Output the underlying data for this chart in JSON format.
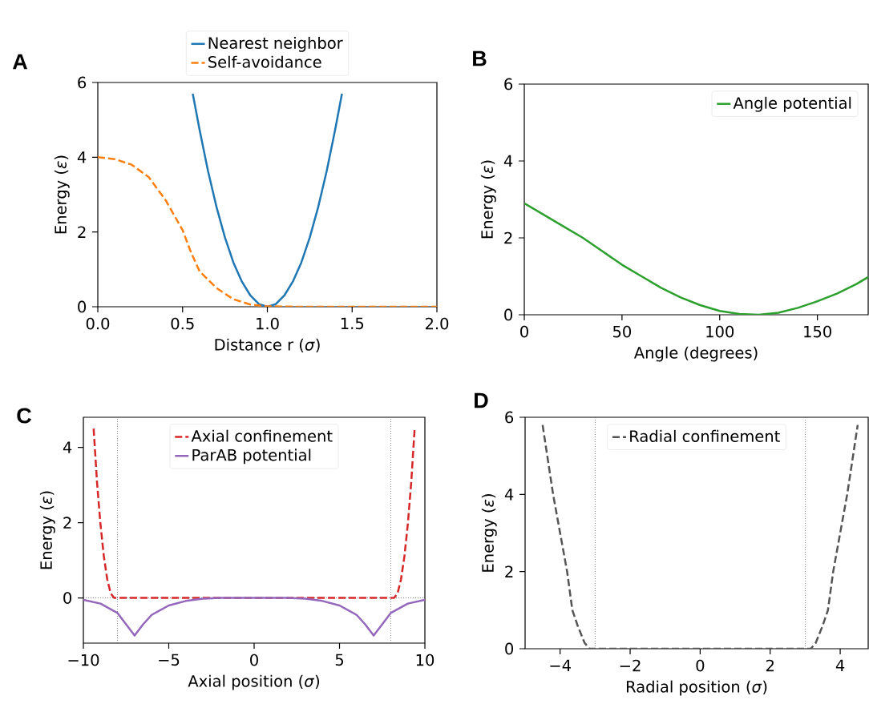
{
  "chart_data": [
    {
      "type": "line",
      "xlabel": "Distance r (*σ*)",
      "ylabel": "Energy (*ε*)",
      "annotations": [
        "A"
      ],
      "xlim": [
        0,
        2
      ],
      "ylim": [
        0,
        6
      ],
      "xticks": [
        {
          "value": 0,
          "label": "0.0"
        },
        {
          "value": 0.5,
          "label": "0.5"
        },
        {
          "value": 1,
          "label": "1.0"
        },
        {
          "value": 1.5,
          "label": "1.5"
        },
        {
          "value": 2,
          "label": "2.0"
        }
      ],
      "yticks": [
        0,
        2,
        4,
        6
      ],
      "legend": "top",
      "marker": "none",
      "series": [
        {
          "name": "Nearest neighbor",
          "color": "#1f77b4",
          "line_style": "solid",
          "x": [
            0.56,
            0.6,
            0.65,
            0.7,
            0.75,
            0.8,
            0.85,
            0.9,
            0.95,
            1.0,
            1.05,
            1.1,
            1.15,
            1.2,
            1.25,
            1.3,
            1.35,
            1.4,
            1.44
          ],
          "values": [
            5.7,
            4.74,
            3.63,
            2.67,
            1.85,
            1.18,
            0.67,
            0.3,
            0.07,
            0,
            0.07,
            0.3,
            0.67,
            1.18,
            1.85,
            2.67,
            3.63,
            4.74,
            5.7
          ]
        },
        {
          "name": "Self-avoidance",
          "color": "#ff7f0e",
          "line_style": "dashed",
          "x": [
            0,
            0.1,
            0.2,
            0.3,
            0.4,
            0.45,
            0.5,
            0.55,
            0.6,
            0.7,
            0.8,
            0.9,
            1.0,
            1.2,
            2.0
          ],
          "values": [
            4,
            3.95,
            3.8,
            3.47,
            2.85,
            2.45,
            2.05,
            1.45,
            0.95,
            0.5,
            0.2,
            0.06,
            0.01,
            0,
            0
          ]
        }
      ]
    },
    {
      "type": "line",
      "xlabel": "Angle (degrees)",
      "ylabel": "Energy (*ε*)",
      "annotations": [
        "B"
      ],
      "xlim": [
        0,
        176
      ],
      "ylim": [
        0,
        6
      ],
      "xticks": [
        0,
        50,
        100,
        150
      ],
      "yticks": [
        0,
        2,
        4,
        6
      ],
      "legend": "top right",
      "marker": "none",
      "series": [
        {
          "name": "Angle potential",
          "color": "#2ca02c",
          "line_style": "solid",
          "x": [
            0,
            10,
            20,
            30,
            40,
            50,
            60,
            70,
            80,
            90,
            100,
            110,
            120,
            130,
            140,
            150,
            160,
            170,
            176
          ],
          "values": [
            2.9,
            2.6,
            2.3,
            2.0,
            1.65,
            1.3,
            1.0,
            0.7,
            0.45,
            0.25,
            0.1,
            0.02,
            0,
            0.05,
            0.18,
            0.35,
            0.55,
            0.8,
            0.98
          ]
        }
      ]
    },
    {
      "type": "line",
      "xlabel": "Axial position (*σ*)",
      "ylabel": "Energy (*ε*)",
      "annotations": [
        "C"
      ],
      "xlim": [
        -10,
        10
      ],
      "ylim": [
        -1.2,
        4.8
      ],
      "xticks": [
        {
          "value": -10,
          "label": "−10"
        },
        {
          "value": -5,
          "label": "−5"
        },
        0,
        5,
        10
      ],
      "yticks": [
        0,
        2,
        4
      ],
      "legend": "top",
      "marker": "none",
      "ref_lines": [
        {
          "axis": "x",
          "value": -8,
          "color": "#555555",
          "line_style": "dotted"
        },
        {
          "axis": "x",
          "value": 8,
          "color": "#555555",
          "line_style": "dotted"
        },
        {
          "axis": "y",
          "value": 0,
          "color": "#555555",
          "line_style": "dotted"
        }
      ],
      "series": [
        {
          "name": "Axial confinement",
          "color": "#d62728",
          "line_style": "dashed",
          "x": [
            -9.4,
            -9.2,
            -9.0,
            -8.8,
            -8.6,
            -8.4,
            -8.2,
            8.2,
            8.4,
            8.6,
            8.8,
            9.0,
            9.2,
            9.4
          ],
          "values": [
            4.5,
            3.07,
            1.96,
            1.1,
            0.49,
            0.12,
            0,
            0,
            0.12,
            0.49,
            1.1,
            1.96,
            3.07,
            4.5
          ]
        },
        {
          "name": "ParAB potential",
          "color": "#9467bd",
          "line_style": "solid",
          "x": [
            -10,
            -9,
            -8,
            -7.5,
            -7,
            -6.5,
            -6,
            -5,
            -4,
            -3,
            -2,
            2,
            3,
            4,
            5,
            6,
            6.5,
            7,
            7.5,
            8,
            9,
            10
          ],
          "values": [
            -0.05,
            -0.15,
            -0.4,
            -0.7,
            -1.0,
            -0.7,
            -0.45,
            -0.2,
            -0.08,
            -0.02,
            0,
            0,
            -0.02,
            -0.08,
            -0.2,
            -0.45,
            -0.7,
            -1.0,
            -0.7,
            -0.4,
            -0.15,
            -0.05
          ]
        }
      ]
    },
    {
      "type": "line",
      "xlabel": "Radial position (*σ*)",
      "ylabel": "Energy (*ε*)",
      "annotations": [
        "D"
      ],
      "xlim": [
        -5,
        4.8
      ],
      "ylim": [
        0,
        6
      ],
      "xticks": [
        {
          "value": -4,
          "label": "−4"
        },
        {
          "value": -2,
          "label": "−2"
        },
        0,
        2,
        4
      ],
      "yticks": [
        0,
        2,
        4,
        6
      ],
      "legend": "top",
      "marker": "none",
      "ref_lines": [
        {
          "axis": "x",
          "value": -3,
          "color": "#555555",
          "line_style": "dotted"
        },
        {
          "axis": "x",
          "value": 3,
          "color": "#555555",
          "line_style": "dotted"
        }
      ],
      "series": [
        {
          "name": "Radial confinement",
          "color": "#555555",
          "line_style": "dashed",
          "x": [
            -4.5,
            -4.2,
            -3.8,
            -3.65,
            -3.5,
            -3.3,
            -3.16,
            3.16,
            3.3,
            3.5,
            3.65,
            3.8,
            4.2,
            4.5
          ],
          "values": [
            5.8,
            4,
            2,
            1.0,
            0.6,
            0.15,
            0,
            0,
            0.15,
            0.6,
            1.0,
            2,
            4,
            5.8
          ]
        }
      ]
    }
  ]
}
